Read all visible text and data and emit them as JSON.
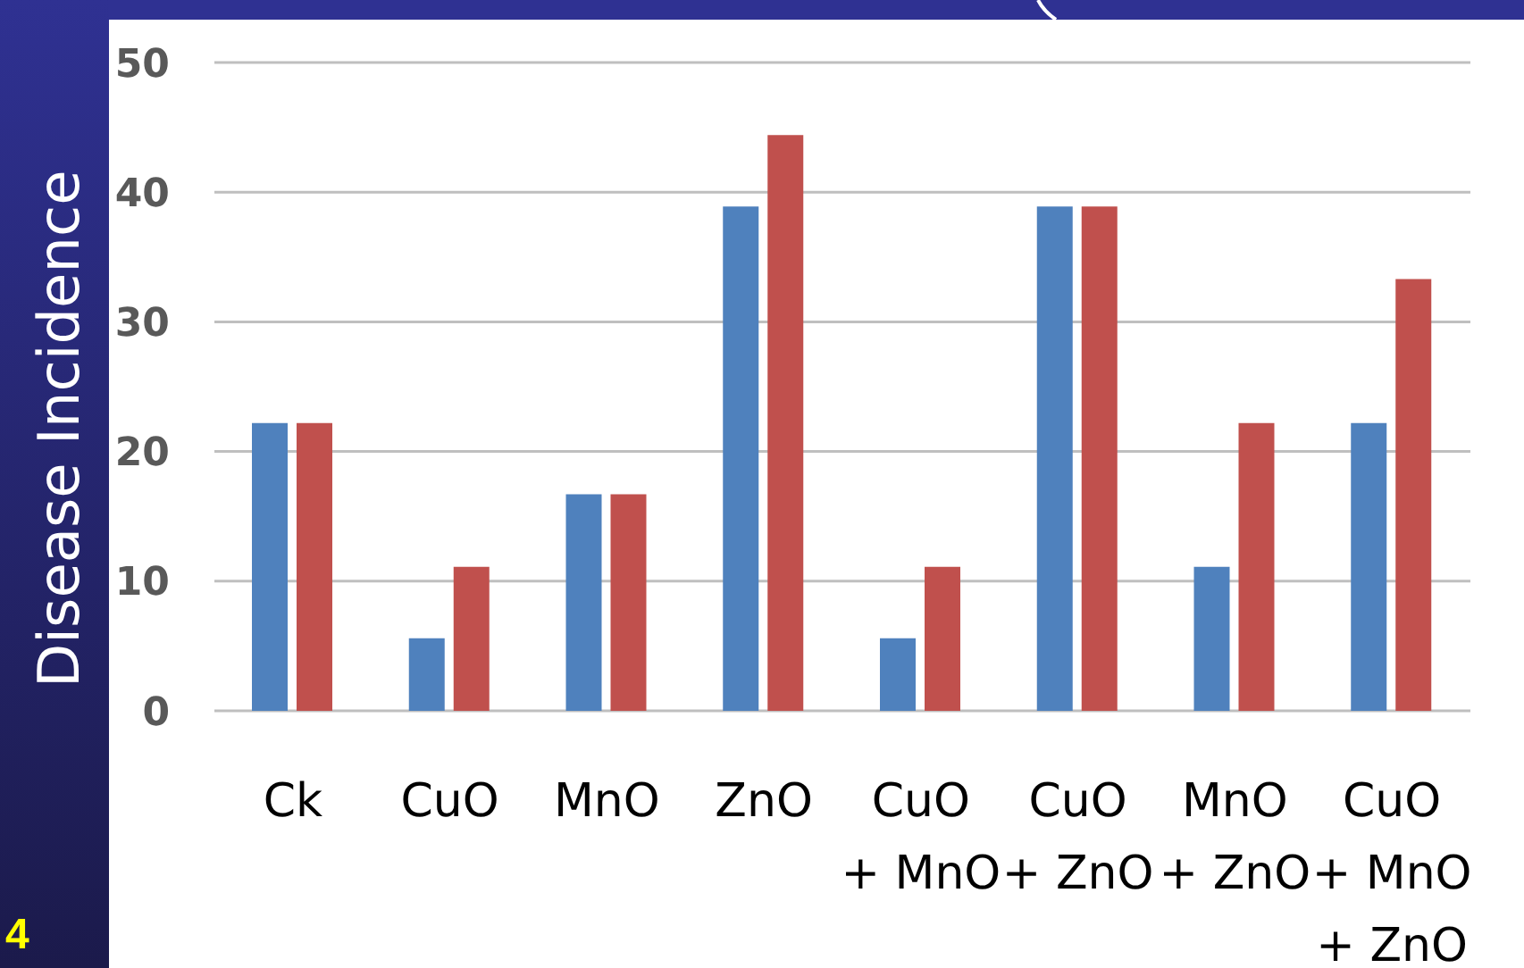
{
  "chart_data": {
    "type": "bar",
    "ylabel": "Disease Incidence",
    "categories": [
      "Ck",
      "CuO",
      "MnO",
      "ZnO",
      "CuO\n+ MnO",
      "CuO\n+ ZnO",
      "MnO\n+ ZnO",
      "CuO\n+ MnO\n+ ZnO"
    ],
    "series": [
      {
        "color": "#4f81bd",
        "values": [
          22.2,
          5.6,
          16.7,
          38.9,
          5.6,
          38.9,
          11.1,
          22.2
        ]
      },
      {
        "color": "#c0504d",
        "values": [
          22.2,
          11.1,
          16.7,
          44.4,
          11.1,
          38.9,
          22.2,
          33.3
        ]
      }
    ],
    "ylim": [
      0,
      50
    ],
    "yticks": [
      0,
      10,
      20,
      30,
      40,
      50
    ],
    "grid": "y",
    "annotations": [
      "4"
    ]
  }
}
